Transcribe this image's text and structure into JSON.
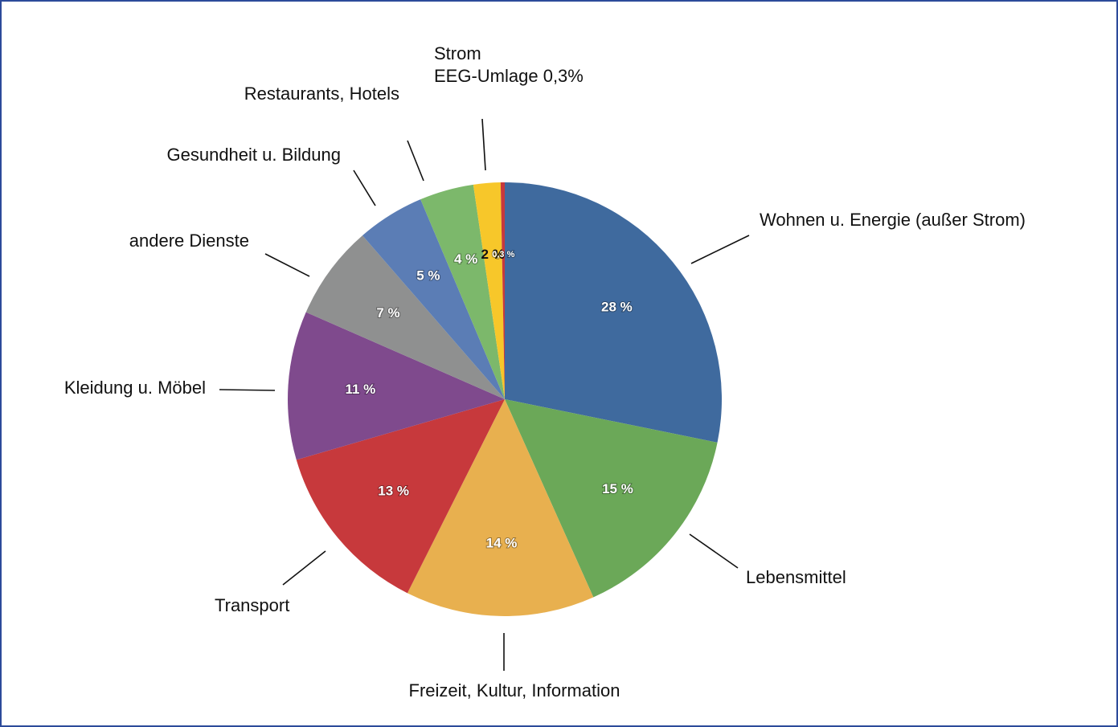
{
  "chart_data": {
    "type": "pie",
    "categories": [
      "Wohnen u. Energie (außer Strom)",
      "Lebensmittel",
      "Freizeit, Kultur, Information",
      "Transport",
      "Kleidung u. Möbel",
      "andere Dienste",
      "Gesundheit u. Bildung",
      "Restaurants, Hotels",
      "Strom",
      "EEG-Umlage 0,3%"
    ],
    "values": [
      28,
      15,
      14,
      13,
      11,
      7,
      5,
      4,
      2,
      0.3
    ],
    "value_labels": [
      "28 %",
      "15 %",
      "14 %",
      "13 %",
      "11 %",
      "7 %",
      "5 %",
      "4 %",
      "2 %",
      "0,3 %"
    ],
    "colors": [
      "#3f6a9e",
      "#6ba858",
      "#e8b04f",
      "#c7393c",
      "#7f4a8d",
      "#8f9090",
      "#5b7db5",
      "#7cb86b",
      "#f7c72a",
      "#c7393c"
    ]
  }
}
